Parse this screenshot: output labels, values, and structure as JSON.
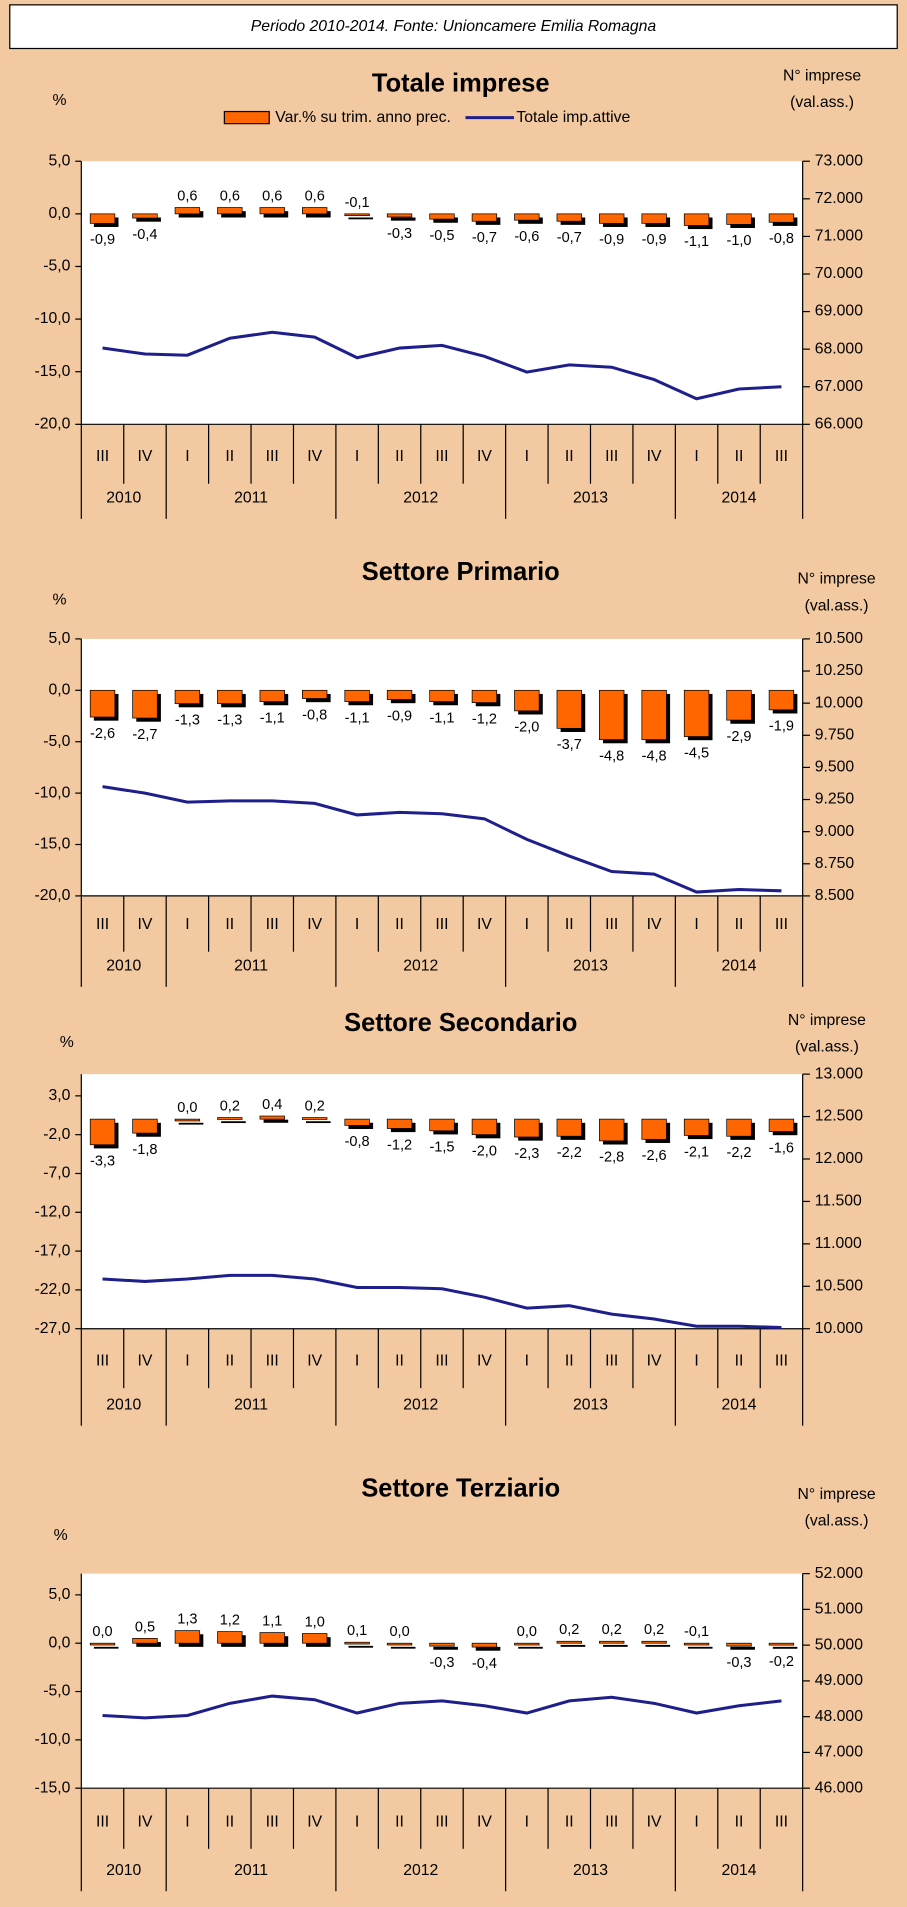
{
  "header": "Periodo 2010-2014. Fonte: Unioncamere Emilia Romagna",
  "chart_data": [
    {
      "type": "bar-line",
      "title": "Totale imprese",
      "y_label": "%",
      "y2_label": [
        "N° imprese",
        "(val.ass.)"
      ],
      "categories": [
        "III",
        "IV",
        "I",
        "II",
        "III",
        "IV",
        "I",
        "II",
        "III",
        "IV",
        "I",
        "II",
        "III",
        "IV",
        "I",
        "II",
        "III"
      ],
      "x_groups": [
        "2010",
        "2011",
        "2012",
        "2013",
        "2014"
      ],
      "series": [
        {
          "name": "Var.% su trim. anno prec.",
          "kind": "bar",
          "color": "#ff6600",
          "values": [
            -0.9,
            -0.4,
            0.6,
            0.6,
            0.6,
            0.6,
            -0.1,
            -0.3,
            -0.5,
            -0.7,
            -0.6,
            -0.7,
            -0.9,
            -0.9,
            -1.1,
            -1.0,
            -0.8
          ],
          "value_labels": [
            "-0,9",
            "-0,4",
            "0,6",
            "0,6",
            "0,6",
            "0,6",
            "-0,1",
            "-0,3",
            "-0,5",
            "-0,7",
            "-0,6",
            "-0,7",
            "-0,9",
            "-0,9",
            "-1,1",
            "-1,0",
            "-0,8"
          ]
        },
        {
          "name": "Totale imp.attive",
          "kind": "line",
          "axis": "y2",
          "color": "#1f1f8c",
          "values": [
            68030,
            67870,
            67840,
            68290,
            68450,
            68320,
            67770,
            68030,
            68100,
            67810,
            67390,
            67580,
            67520,
            67190,
            66680,
            66940,
            67000
          ]
        }
      ],
      "ylim": [
        -20,
        5
      ],
      "yticks": [
        {
          "value": 5,
          "label": "5,0"
        },
        {
          "value": 0,
          "label": "0,0"
        },
        {
          "value": -5,
          "label": "-5,0"
        },
        {
          "value": -10,
          "label": "-10,0"
        },
        {
          "value": -15,
          "label": "-15,0"
        },
        {
          "value": -20,
          "label": "-20,0"
        }
      ],
      "y2lim": [
        66000,
        73000
      ],
      "y2ticks": [
        {
          "value": 73000,
          "label": "73.000"
        },
        {
          "value": 72000,
          "label": "72.000"
        },
        {
          "value": 71000,
          "label": "71.000"
        },
        {
          "value": 70000,
          "label": "70.000"
        },
        {
          "value": 69000,
          "label": "69.000"
        },
        {
          "value": 68000,
          "label": "68.000"
        },
        {
          "value": 67000,
          "label": "67.000"
        },
        {
          "value": 66000,
          "label": "66.000"
        }
      ]
    },
    {
      "type": "bar-line",
      "title": "Settore Primario",
      "y_label": "%",
      "y2_label": [
        "N° imprese",
        "(val.ass.)"
      ],
      "categories": [
        "III",
        "IV",
        "I",
        "II",
        "III",
        "IV",
        "I",
        "II",
        "III",
        "IV",
        "I",
        "II",
        "III",
        "IV",
        "I",
        "II",
        "III"
      ],
      "x_groups": [
        "2010",
        "2011",
        "2012",
        "2013",
        "2014"
      ],
      "series": [
        {
          "kind": "bar",
          "color": "#ff6600",
          "values": [
            -2.6,
            -2.7,
            -1.3,
            -1.3,
            -1.1,
            -0.8,
            -1.1,
            -0.9,
            -1.1,
            -1.2,
            -2.0,
            -3.7,
            -4.8,
            -4.8,
            -4.5,
            -2.9,
            -1.9
          ],
          "value_labels": [
            "-2,6",
            "-2,7",
            "-1,3",
            "-1,3",
            "-1,1",
            "-0,8",
            "-1,1",
            "-0,9",
            "-1,1",
            "-1,2",
            "-2,0",
            "-3,7",
            "-4,8",
            "-4,8",
            "-4,5",
            "-2,9",
            "-1,9"
          ]
        },
        {
          "kind": "line",
          "axis": "y2",
          "color": "#1f1f8c",
          "values": [
            9350,
            9300,
            9230,
            9240,
            9240,
            9220,
            9130,
            9150,
            9140,
            9100,
            8940,
            8810,
            8690,
            8670,
            8530,
            8550,
            8540
          ]
        }
      ],
      "ylim": [
        -20,
        5
      ],
      "yticks": [
        {
          "value": 5,
          "label": "5,0"
        },
        {
          "value": 0,
          "label": "0,0"
        },
        {
          "value": -5,
          "label": "-5,0"
        },
        {
          "value": -10,
          "label": "-10,0"
        },
        {
          "value": -15,
          "label": "-15,0"
        },
        {
          "value": -20,
          "label": "-20,0"
        }
      ],
      "y2lim": [
        8500,
        10500
      ],
      "y2ticks": [
        {
          "value": 10500,
          "label": "10.500"
        },
        {
          "value": 10250,
          "label": "10.250"
        },
        {
          "value": 10000,
          "label": "10.000"
        },
        {
          "value": 9750,
          "label": "9.750"
        },
        {
          "value": 9500,
          "label": "9.500"
        },
        {
          "value": 9250,
          "label": "9.250"
        },
        {
          "value": 9000,
          "label": "9.000"
        },
        {
          "value": 8750,
          "label": "8.750"
        },
        {
          "value": 8500,
          "label": "8.500"
        }
      ]
    },
    {
      "type": "bar-line",
      "title": "Settore Secondario",
      "y_label": "%",
      "y2_label": [
        "N° imprese",
        "(val.ass.)"
      ],
      "categories": [
        "III",
        "IV",
        "I",
        "II",
        "III",
        "IV",
        "I",
        "II",
        "III",
        "IV",
        "I",
        "II",
        "III",
        "IV",
        "I",
        "II",
        "III"
      ],
      "x_groups": [
        "2010",
        "2011",
        "2012",
        "2013",
        "2014"
      ],
      "series": [
        {
          "kind": "bar",
          "color": "#ff6600",
          "values": [
            -3.3,
            -1.8,
            0.0,
            0.2,
            0.4,
            0.2,
            -0.8,
            -1.2,
            -1.5,
            -2.0,
            -2.3,
            -2.2,
            -2.8,
            -2.6,
            -2.1,
            -2.2,
            -1.6
          ],
          "value_labels": [
            "-3,3",
            "-1,8",
            "0,0",
            "0,2",
            "0,4",
            "0,2",
            "-0,8",
            "-1,2",
            "-1,5",
            "-2,0",
            "-2,3",
            "-2,2",
            "-2,8",
            "-2,6",
            "-2,1",
            "-2,2",
            "-1,6"
          ]
        },
        {
          "kind": "line",
          "axis": "y2",
          "color": "#1f1f8c",
          "values": [
            10586,
            10557,
            10586,
            10629,
            10629,
            10586,
            10486,
            10486,
            10471,
            10371,
            10243,
            10271,
            10171,
            10114,
            10029,
            10029,
            10014
          ]
        }
      ],
      "ylim": [
        -27,
        5.8
      ],
      "yticks": [
        {
          "value": 3,
          "label": "3,0"
        },
        {
          "value": -2,
          "label": "-2,0"
        },
        {
          "value": -7,
          "label": "-7,0"
        },
        {
          "value": -12,
          "label": "-12,0"
        },
        {
          "value": -17,
          "label": "-17,0"
        },
        {
          "value": -22,
          "label": "-22,0"
        },
        {
          "value": -27,
          "label": "-27,0"
        }
      ],
      "y2lim": [
        10000,
        13000
      ],
      "y2ticks": [
        {
          "value": 13000,
          "label": "13.000"
        },
        {
          "value": 12500,
          "label": "12.500"
        },
        {
          "value": 12000,
          "label": "12.000"
        },
        {
          "value": 11500,
          "label": "11.500"
        },
        {
          "value": 11000,
          "label": "11.000"
        },
        {
          "value": 10500,
          "label": "10.500"
        },
        {
          "value": 10000,
          "label": "10.000"
        }
      ]
    },
    {
      "type": "bar-line",
      "title": "Settore Terziario",
      "y_label": "%",
      "y2_label": [
        "N° imprese",
        "(val.ass.)"
      ],
      "categories": [
        "III",
        "IV",
        "I",
        "II",
        "III",
        "IV",
        "I",
        "II",
        "III",
        "IV",
        "I",
        "II",
        "III",
        "IV",
        "I",
        "II",
        "III"
      ],
      "x_groups": [
        "2010",
        "2011",
        "2012",
        "2013",
        "2014"
      ],
      "series": [
        {
          "kind": "bar",
          "color": "#ff6600",
          "values": [
            0.0,
            0.5,
            1.3,
            1.2,
            1.1,
            1.0,
            0.1,
            0.0,
            -0.3,
            -0.4,
            0.0,
            0.2,
            0.2,
            0.2,
            -0.1,
            -0.3,
            -0.2
          ],
          "value_labels": [
            "0,0",
            "0,5",
            "1,3",
            "1,2",
            "1,1",
            "1,0",
            "0,1",
            "0,0",
            "-0,3",
            "-0,4",
            "0,0",
            "0,2",
            "0,2",
            "0,2",
            "-0,1",
            "-0,3",
            "-0,2"
          ]
        },
        {
          "kind": "line",
          "axis": "y2",
          "color": "#1f1f8c",
          "values": [
            48034,
            47966,
            48034,
            48373,
            48576,
            48475,
            48102,
            48373,
            48440,
            48305,
            48102,
            48440,
            48542,
            48373,
            48102,
            48305,
            48440
          ]
        }
      ],
      "ylim": [
        -15,
        7.2
      ],
      "yticks": [
        {
          "value": 5,
          "label": "5,0"
        },
        {
          "value": 0,
          "label": "0,0"
        },
        {
          "value": -5,
          "label": "-5,0"
        },
        {
          "value": -10,
          "label": "-10,0"
        },
        {
          "value": -15,
          "label": "-15,0"
        }
      ],
      "y2lim": [
        46000,
        52000
      ],
      "y2ticks": [
        {
          "value": 52000,
          "label": "52.000"
        },
        {
          "value": 51000,
          "label": "51.000"
        },
        {
          "value": 50000,
          "label": "50.000"
        },
        {
          "value": 49000,
          "label": "49.000"
        },
        {
          "value": 48000,
          "label": "48.000"
        },
        {
          "value": 47000,
          "label": "47.000"
        },
        {
          "value": 46000,
          "label": "46.000"
        }
      ]
    }
  ]
}
